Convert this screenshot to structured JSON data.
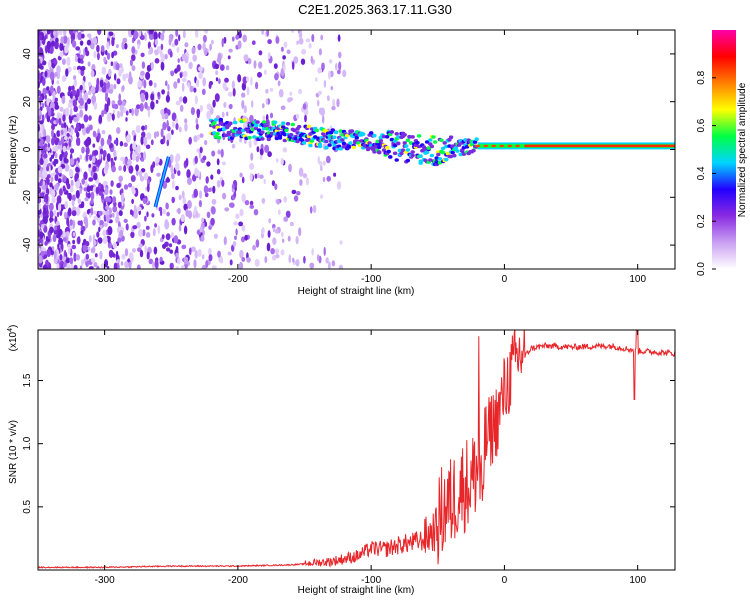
{
  "title": "C2E1.2025.363.17.11.G30",
  "chart_data": [
    {
      "type": "heatmap",
      "xlabel": "Height of straight line (km)",
      "ylabel": "Frequency (Hz)",
      "xlim": [
        -350,
        128
      ],
      "ylim": [
        -50,
        50
      ],
      "xticks": [
        -300,
        -200,
        -100,
        0,
        100
      ],
      "yticks": [
        -40,
        -20,
        0,
        20,
        40
      ],
      "colorbar": {
        "label": "Normalized spectral amplitude",
        "range": [
          0,
          1
        ],
        "ticks": [
          "0.0",
          "0.2",
          "0.4",
          "0.6",
          "0.8"
        ],
        "tick_values": [
          0.0,
          0.2,
          0.4,
          0.6,
          0.8
        ],
        "colormap": [
          "#ffffff",
          "#c9a0f2",
          "#8a2be2",
          "#2200ff",
          "#00d5ff",
          "#00ff44",
          "#ffff00",
          "#ff7f00",
          "#ff0000",
          "#ff00a8"
        ]
      },
      "features": {
        "main_trace": {
          "x": [
            -220,
            -200,
            -180,
            -160,
            -140,
            -120,
            -100,
            -80,
            -60,
            -50,
            -40,
            -30,
            -20,
            0,
            20,
            50,
            90,
            128
          ],
          "y": [
            9,
            8.5,
            8,
            7,
            5,
            4,
            3,
            1,
            0,
            -1,
            0,
            1,
            1.5,
            1.5,
            1.5,
            1.5,
            1.5,
            1.5
          ]
        },
        "streak": {
          "x": [
            -262,
            -252
          ],
          "y": [
            -24,
            -3
          ]
        }
      }
    },
    {
      "type": "line",
      "xlabel": "Height of straight line (km)",
      "ylabel": "SNR (10 * v/v)",
      "scale_label": "(x10",
      "scale_exp": "4",
      "scale_close": ")",
      "xlim": [
        -350,
        128
      ],
      "ylim": [
        0,
        1.9
      ],
      "xticks": [
        -300,
        -200,
        -100,
        0,
        100
      ],
      "yticks": [
        0.5,
        1.0,
        1.5
      ],
      "ytick_labels": [
        "0.5",
        "1.0",
        "1.5"
      ],
      "color": "#e8262a",
      "series": [
        {
          "x": [
            -350,
            -300,
            -250,
            -200,
            -160,
            -130,
            -110,
            -100,
            -90,
            -80,
            -70,
            -60,
            -50,
            -45,
            -40,
            -35,
            -30,
            -25,
            -20,
            -17,
            -15,
            -12,
            -10,
            -5,
            0,
            5,
            10,
            15,
            20,
            30,
            50,
            80,
            100,
            128
          ],
          "values": [
            0.02,
            0.02,
            0.03,
            0.03,
            0.04,
            0.06,
            0.1,
            0.16,
            0.15,
            0.18,
            0.2,
            0.22,
            0.3,
            0.42,
            0.45,
            0.55,
            0.6,
            0.62,
            0.75,
            0.4,
            0.95,
            1.0,
            1.05,
            1.15,
            1.35,
            1.5,
            1.62,
            1.68,
            1.75,
            1.77,
            1.76,
            1.77,
            1.73,
            1.71
          ]
        }
      ]
    }
  ]
}
